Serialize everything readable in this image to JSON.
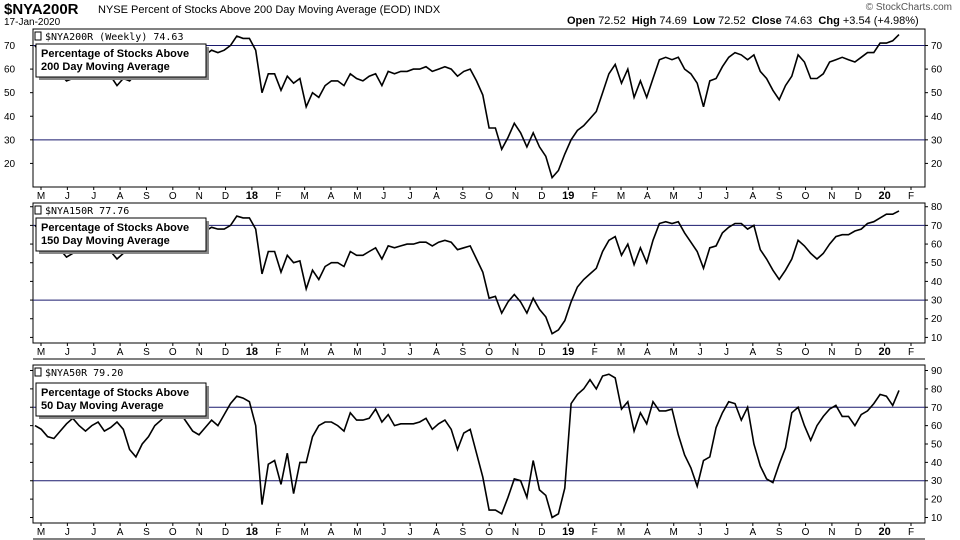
{
  "header": {
    "symbol": "$NYA200R",
    "description": "NYSE Percent of Stocks Above 200 Day Moving Average (EOD) INDX",
    "date": "17-Jan-2020",
    "open_label": "Open",
    "open": "72.52",
    "high_label": "High",
    "high": "74.69",
    "low_label": "Low",
    "low": "72.52",
    "close_label": "Close",
    "close": "74.63",
    "chg_label": "Chg",
    "chg": "+3.54 (+4.98%)",
    "copyright": "© StockCharts.com"
  },
  "chart_data": {
    "type": "line",
    "x_axis": {
      "months": [
        "M",
        "J",
        "J",
        "A",
        "S",
        "O",
        "N",
        "D",
        "18",
        "F",
        "M",
        "A",
        "M",
        "J",
        "J",
        "A",
        "S",
        "O",
        "N",
        "D",
        "19",
        "F",
        "M",
        "A",
        "M",
        "J",
        "J",
        "A",
        "S",
        "O",
        "N",
        "D",
        "20",
        "F"
      ],
      "year_labels": [
        "18",
        "19",
        "20"
      ]
    },
    "panels": [
      {
        "legend": "$NYA200R (Weekly) 74.63",
        "note": [
          "Percentage of Stocks Above",
          "200 Day Moving Average"
        ],
        "ylim": [
          10,
          77
        ],
        "yticks": [
          20,
          30,
          40,
          50,
          60,
          70
        ],
        "reference_lines": [
          70,
          30
        ],
        "values": [
          70,
          66,
          62,
          64,
          58,
          55,
          56,
          60,
          57,
          60,
          61,
          58,
          57,
          53,
          56,
          55,
          58,
          60,
          57,
          62,
          59,
          63,
          64,
          67,
          69,
          67,
          63,
          66,
          68,
          67,
          68,
          70,
          74,
          73,
          73,
          68,
          50,
          58,
          58,
          51,
          57,
          54,
          56,
          44,
          50,
          48,
          53,
          55,
          55,
          53,
          58,
          56,
          55,
          57,
          58,
          53,
          59,
          58,
          59,
          59,
          60,
          60,
          61,
          59,
          60,
          61,
          60,
          57,
          59,
          60,
          55,
          49,
          35,
          35,
          26,
          31,
          37,
          33,
          27,
          33,
          27,
          23,
          14,
          17,
          24,
          30,
          34,
          36,
          39,
          42,
          50,
          58,
          62,
          54,
          60,
          48,
          55,
          48,
          56,
          64,
          65,
          64,
          65,
          60,
          58,
          54,
          44,
          55,
          56,
          61,
          65,
          67,
          66,
          64,
          66,
          59,
          56,
          51,
          47,
          53,
          57,
          66,
          63,
          56,
          56,
          58,
          63,
          64,
          65,
          64,
          63,
          65,
          67,
          67,
          71,
          71,
          72,
          74.63
        ]
      },
      {
        "legend": "$NYA150R 77.76",
        "note": [
          "Percentage of Stocks Above",
          "150 Day Moving Average"
        ],
        "ylim": [
          7,
          82
        ],
        "yticks": [
          10,
          20,
          30,
          40,
          50,
          60,
          70,
          80
        ],
        "reference_lines": [
          70,
          30
        ],
        "values": [
          70,
          66,
          60,
          63,
          57,
          53,
          55,
          59,
          57,
          60,
          62,
          58,
          56,
          52,
          55,
          56,
          59,
          61,
          57,
          63,
          60,
          64,
          66,
          68,
          70,
          68,
          65,
          67,
          69,
          68,
          68,
          70,
          75,
          74,
          74,
          68,
          44,
          56,
          56,
          45,
          54,
          50,
          51,
          36,
          46,
          41,
          48,
          50,
          50,
          48,
          56,
          54,
          54,
          56,
          58,
          52,
          59,
          58,
          59,
          60,
          60,
          61,
          61,
          59,
          61,
          62,
          61,
          57,
          58,
          59,
          52,
          45,
          31,
          32,
          23,
          29,
          33,
          29,
          23,
          31,
          25,
          21,
          12,
          14,
          19,
          29,
          37,
          41,
          44,
          47,
          56,
          62,
          64,
          54,
          60,
          49,
          58,
          50,
          62,
          71,
          72,
          71,
          72,
          66,
          61,
          56,
          47,
          58,
          59,
          66,
          69,
          71,
          71,
          68,
          70,
          57,
          52,
          46,
          41,
          46,
          52,
          62,
          59,
          55,
          52,
          55,
          60,
          64,
          65,
          65,
          67,
          68,
          71,
          72,
          74,
          76,
          76,
          77.76
        ]
      },
      {
        "legend": "$NYA50R 79.20",
        "note": [
          "Percentage of Stocks Above",
          "50 Day Moving Average"
        ],
        "ylim": [
          7,
          93
        ],
        "yticks": [
          10,
          20,
          30,
          40,
          50,
          60,
          70,
          80,
          90
        ],
        "reference_lines": [
          70,
          30
        ],
        "values": [
          60,
          58,
          54,
          53,
          57,
          61,
          64,
          60,
          57,
          60,
          62,
          57,
          59,
          62,
          58,
          47,
          43,
          50,
          54,
          60,
          63,
          67,
          68,
          67,
          62,
          57,
          55,
          59,
          63,
          60,
          66,
          72,
          76,
          75,
          73,
          60,
          17,
          39,
          41,
          28,
          45,
          23,
          40,
          40,
          54,
          60,
          62,
          62,
          60,
          57,
          67,
          63,
          63,
          64,
          69,
          62,
          66,
          60,
          61,
          61,
          61,
          62,
          64,
          58,
          61,
          63,
          58,
          47,
          56,
          58,
          45,
          32,
          14,
          14,
          12,
          21,
          31,
          30,
          21,
          41,
          25,
          22,
          10,
          12,
          26,
          72,
          77,
          80,
          85,
          80,
          87,
          88,
          86,
          69,
          73,
          57,
          67,
          61,
          73,
          68,
          68,
          69,
          55,
          44,
          37,
          27,
          41,
          43,
          59,
          67,
          73,
          72,
          63,
          70,
          50,
          38,
          31,
          29,
          39,
          48,
          67,
          70,
          60,
          52,
          60,
          65,
          69,
          71,
          65,
          65,
          60,
          66,
          68,
          72,
          77,
          76,
          71,
          79.2
        ]
      }
    ]
  }
}
